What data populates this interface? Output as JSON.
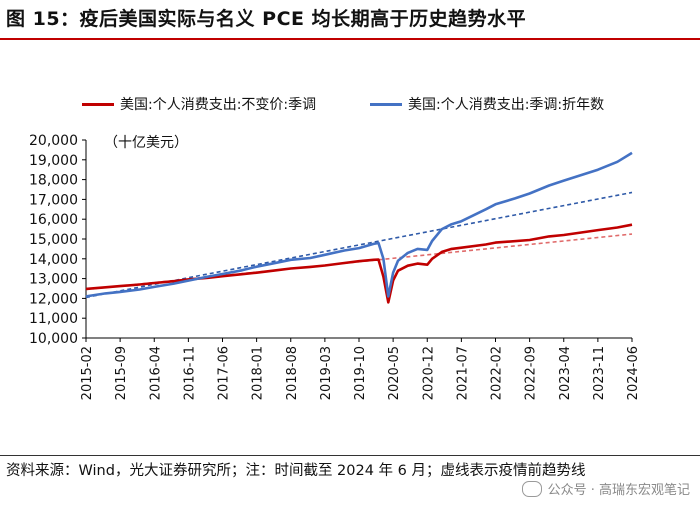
{
  "title": "图 15：疫后美国实际与名义 PCE 均长期高于历史趋势水平",
  "footer": {
    "source": "资料来源：Wind，光大证券研究所；注：时间截至 2024 年 6 月；虚线表示疫情前趋势线"
  },
  "watermark": {
    "text": "公众号 · 高瑞东宏观笔记"
  },
  "chart_data": {
    "type": "line",
    "unit_label": "（十亿美元）",
    "yticks": [
      10000,
      11000,
      12000,
      13000,
      14000,
      15000,
      16000,
      17000,
      18000,
      19000,
      20000
    ],
    "ytick_labels": [
      "10,000",
      "11,000",
      "12,000",
      "13,000",
      "14,000",
      "15,000",
      "16,000",
      "17,000",
      "18,000",
      "19,000",
      "20,000"
    ],
    "ylim": [
      10000,
      20000
    ],
    "x_tick_labels": [
      "2015-02",
      "2015-09",
      "2016-04",
      "2016-11",
      "2017-06",
      "2018-01",
      "2018-08",
      "2019-03",
      "2019-10",
      "2020-05",
      "2020-12",
      "2021-07",
      "2022-02",
      "2022-09",
      "2023-04",
      "2023-11",
      "2024-06"
    ],
    "x_tick_index": [
      0,
      7,
      14,
      21,
      28,
      35,
      42,
      49,
      56,
      63,
      70,
      77,
      84,
      91,
      98,
      105,
      112
    ],
    "x_range": [
      "2015-02",
      "2024-06"
    ],
    "series": [
      {
        "name": "美国:个人消费支出:不变价:季调",
        "color": "#c00000",
        "points": [
          [
            "2015-02",
            12480
          ],
          [
            "2015-06",
            12560
          ],
          [
            "2015-09",
            12620
          ],
          [
            "2016-01",
            12700
          ],
          [
            "2016-04",
            12780
          ],
          [
            "2016-08",
            12870
          ],
          [
            "2016-11",
            12960
          ],
          [
            "2017-03",
            13040
          ],
          [
            "2017-06",
            13120
          ],
          [
            "2017-10",
            13220
          ],
          [
            "2018-01",
            13300
          ],
          [
            "2018-05",
            13420
          ],
          [
            "2018-08",
            13510
          ],
          [
            "2018-12",
            13590
          ],
          [
            "2019-03",
            13660
          ],
          [
            "2019-07",
            13790
          ],
          [
            "2019-10",
            13880
          ],
          [
            "2020-01",
            13950
          ],
          [
            "2020-02",
            13960
          ],
          [
            "2020-03",
            13100
          ],
          [
            "2020-04",
            11800
          ],
          [
            "2020-05",
            12900
          ],
          [
            "2020-06",
            13400
          ],
          [
            "2020-08",
            13650
          ],
          [
            "2020-10",
            13760
          ],
          [
            "2020-12",
            13700
          ],
          [
            "2021-01",
            14000
          ],
          [
            "2021-03",
            14350
          ],
          [
            "2021-05",
            14500
          ],
          [
            "2021-07",
            14560
          ],
          [
            "2021-12",
            14720
          ],
          [
            "2022-02",
            14820
          ],
          [
            "2022-09",
            14950
          ],
          [
            "2023-01",
            15130
          ],
          [
            "2023-04",
            15200
          ],
          [
            "2023-11",
            15450
          ],
          [
            "2024-03",
            15580
          ],
          [
            "2024-06",
            15720
          ]
        ]
      },
      {
        "name": "美国:个人消费支出:季调:折年数",
        "color": "#4472c4",
        "points": [
          [
            "2015-02",
            12100
          ],
          [
            "2015-06",
            12250
          ],
          [
            "2015-09",
            12330
          ],
          [
            "2016-01",
            12450
          ],
          [
            "2016-04",
            12580
          ],
          [
            "2016-08",
            12750
          ],
          [
            "2016-11",
            12900
          ],
          [
            "2017-03",
            13100
          ],
          [
            "2017-06",
            13230
          ],
          [
            "2017-10",
            13420
          ],
          [
            "2018-01",
            13600
          ],
          [
            "2018-05",
            13800
          ],
          [
            "2018-08",
            13950
          ],
          [
            "2018-12",
            14040
          ],
          [
            "2019-03",
            14200
          ],
          [
            "2019-07",
            14420
          ],
          [
            "2019-10",
            14540
          ],
          [
            "2020-01",
            14750
          ],
          [
            "2020-02",
            14800
          ],
          [
            "2020-03",
            14000
          ],
          [
            "2020-04",
            12100
          ],
          [
            "2020-05",
            13300
          ],
          [
            "2020-06",
            13900
          ],
          [
            "2020-08",
            14300
          ],
          [
            "2020-10",
            14500
          ],
          [
            "2020-12",
            14450
          ],
          [
            "2021-01",
            14900
          ],
          [
            "2021-03",
            15500
          ],
          [
            "2021-05",
            15750
          ],
          [
            "2021-07",
            15900
          ],
          [
            "2021-12",
            16500
          ],
          [
            "2022-02",
            16750
          ],
          [
            "2022-06",
            17050
          ],
          [
            "2022-09",
            17300
          ],
          [
            "2023-01",
            17700
          ],
          [
            "2023-04",
            17950
          ],
          [
            "2023-11",
            18500
          ],
          [
            "2024-03",
            18900
          ],
          [
            "2024-06",
            19350
          ]
        ]
      }
    ],
    "trend_lines": [
      {
        "of_series": 0,
        "style": "dashed",
        "color": "#e06b6b",
        "from": [
          "2015-02",
          12450
        ],
        "to": [
          "2024-06",
          15250
        ]
      },
      {
        "of_series": 1,
        "style": "dashed",
        "color": "#2f5aa8",
        "from": [
          "2015-02",
          12050
        ],
        "to": [
          "2024-06",
          17350
        ]
      }
    ],
    "grid": false,
    "legend_position": "top"
  }
}
